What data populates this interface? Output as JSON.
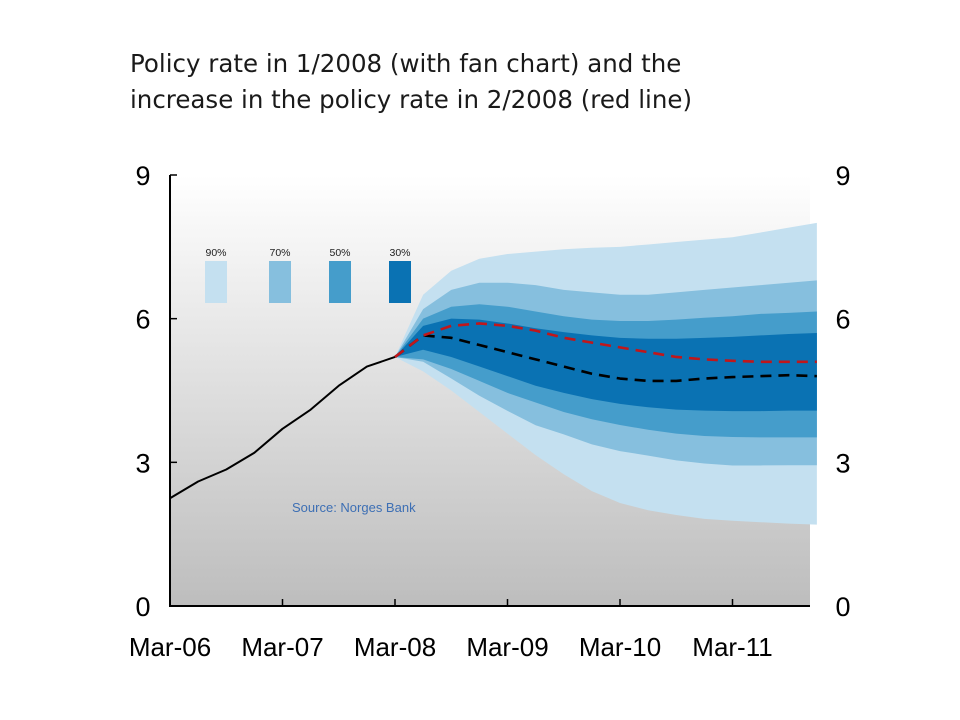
{
  "title_lines": [
    "Policy rate in 1/2008 (with fan chart) and the",
    "increase in the policy rate in 2/2008 (red line)"
  ],
  "colors": {
    "band_90": "#c4e0f0",
    "band_70": "#86bfde",
    "band_50": "#459dcb",
    "band_30": "#0a72b3",
    "history": "#000000",
    "baseline_1_2008": "#000000",
    "path_2_2008": "#c0171b",
    "source_text": "#3d6fb4"
  },
  "chart_data": {
    "type": "line",
    "title": "Policy rate in 1/2008 (with fan chart) and the increase in the policy rate in 2/2008 (red line)",
    "x_tick_labels": [
      "Mar-06",
      "Mar-07",
      "Mar-08",
      "Mar-09",
      "Mar-10",
      "Mar-11"
    ],
    "x_ticks": [
      "2006-03",
      "2007-03",
      "2008-03",
      "2009-03",
      "2010-03",
      "2011-03"
    ],
    "xlim": [
      "2006-03",
      "2011-12"
    ],
    "ylim": [
      0,
      9
    ],
    "y_ticks": [
      0,
      3,
      6,
      9
    ],
    "y_axis_left_labels": [
      "9",
      "6",
      "3",
      "0"
    ],
    "y_axis_right_labels": [
      "9",
      "6",
      "3",
      "0"
    ],
    "legend": [
      "90%",
      "70%",
      "50%",
      "30%"
    ],
    "legend_position": "top-left",
    "source": "Source: Norges Bank",
    "x": [
      "2006-03",
      "2006-06",
      "2006-09",
      "2006-12",
      "2007-03",
      "2007-06",
      "2007-09",
      "2007-12",
      "2008-03",
      "2008-06",
      "2008-09",
      "2008-12",
      "2009-03",
      "2009-06",
      "2009-09",
      "2009-12",
      "2010-03",
      "2010-06",
      "2010-09",
      "2010-12",
      "2011-03",
      "2011-06",
      "2011-09",
      "2011-12"
    ],
    "series": [
      {
        "values": [
          2.25,
          2.6,
          2.85,
          3.2,
          3.7,
          4.1,
          4.6,
          5.0,
          5.2,
          null,
          null,
          null,
          null,
          null,
          null,
          null,
          null,
          null,
          null,
          null,
          null,
          null,
          null,
          null
        ]
      },
      {
        "values": [
          null,
          null,
          null,
          null,
          null,
          null,
          null,
          null,
          5.2,
          5.65,
          5.6,
          5.45,
          5.3,
          5.15,
          5.0,
          4.85,
          4.75,
          4.7,
          4.7,
          4.75,
          4.78,
          4.8,
          4.82,
          4.8
        ]
      },
      {
        "values": [
          null,
          null,
          null,
          null,
          null,
          null,
          null,
          null,
          5.2,
          5.65,
          5.85,
          5.9,
          5.85,
          5.75,
          5.6,
          5.5,
          5.4,
          5.3,
          5.2,
          5.15,
          5.12,
          5.1,
          5.1,
          5.1
        ]
      }
    ],
    "fan_bands": [
      {
        "name": "90%",
        "upper": [
          5.2,
          6.5,
          7.0,
          7.25,
          7.35,
          7.4,
          7.45,
          7.48,
          7.5,
          7.55,
          7.6,
          7.65,
          7.7,
          7.8,
          7.9,
          8.0
        ],
        "lower": [
          5.2,
          4.9,
          4.5,
          4.05,
          3.6,
          3.15,
          2.75,
          2.4,
          2.15,
          2.0,
          1.9,
          1.82,
          1.78,
          1.75,
          1.72,
          1.7
        ]
      },
      {
        "name": "70%",
        "upper": [
          5.2,
          6.2,
          6.6,
          6.75,
          6.75,
          6.7,
          6.6,
          6.55,
          6.5,
          6.5,
          6.55,
          6.6,
          6.65,
          6.7,
          6.75,
          6.8
        ]
      },
      {
        "name": "50%",
        "upper": [
          5.2,
          6.0,
          6.25,
          6.3,
          6.25,
          6.15,
          6.05,
          5.98,
          5.95,
          5.95,
          5.98,
          6.02,
          6.05,
          6.1,
          6.12,
          6.15
        ],
        "lower": [
          5.2,
          5.15,
          4.95,
          4.7,
          4.45,
          4.25,
          4.05,
          3.9,
          3.78,
          3.68,
          3.6,
          3.55,
          3.53,
          3.52,
          3.52,
          3.52
        ]
      },
      {
        "name": "30%",
        "upper": [
          5.2,
          5.85,
          6.0,
          5.98,
          5.9,
          5.8,
          5.72,
          5.65,
          5.6,
          5.58,
          5.58,
          5.6,
          5.62,
          5.65,
          5.68,
          5.7
        ],
        "lower": [
          5.2,
          5.35,
          5.2,
          5.0,
          4.8,
          4.6,
          4.45,
          4.32,
          4.22,
          4.15,
          4.1,
          4.08,
          4.07,
          4.07,
          4.08,
          4.08
        ]
      }
    ],
    "fan_x": [
      "2008-03",
      "2008-06",
      "2008-09",
      "2008-12",
      "2009-03",
      "2009-06",
      "2009-09",
      "2009-12",
      "2010-03",
      "2010-06",
      "2010-09",
      "2010-12",
      "2011-03",
      "2011-06",
      "2011-09",
      "2011-12"
    ],
    "grid": false
  }
}
